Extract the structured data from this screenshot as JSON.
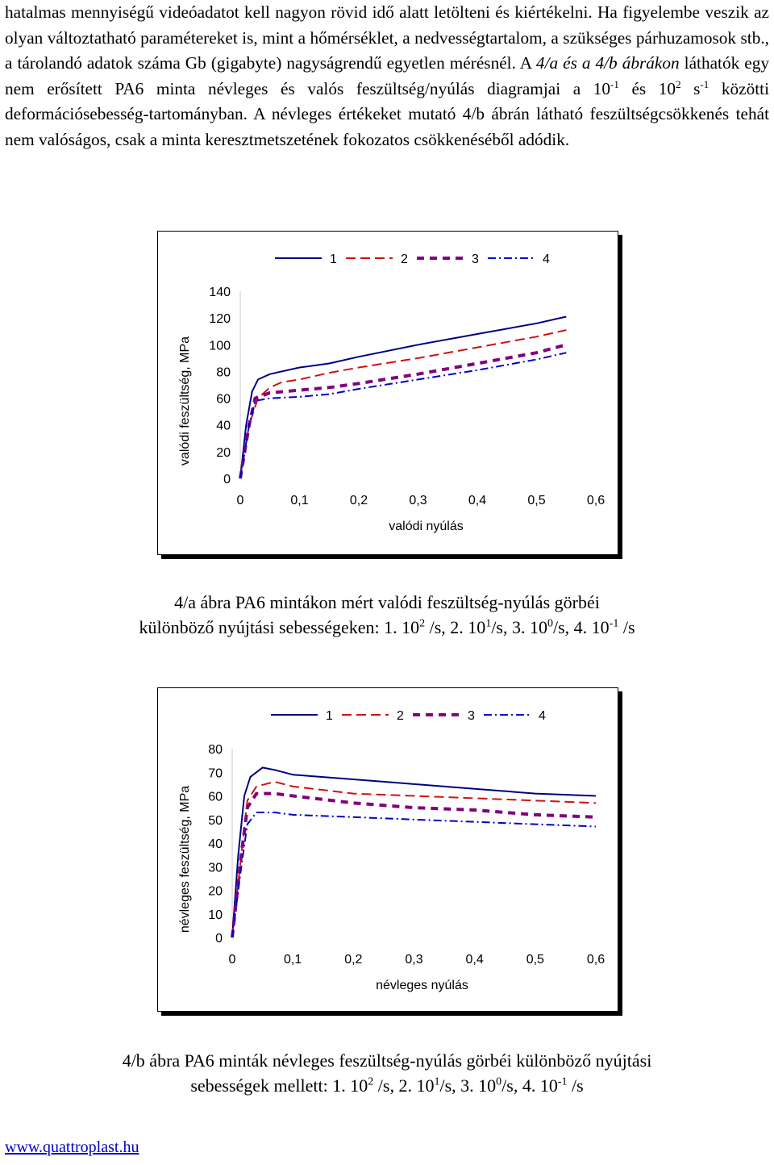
{
  "paragraph": {
    "p1": "hatalmas mennyiségű videóadatot kell nagyon rövid idő alatt letölteni és kiértékelni. Ha figyelembe veszik az olyan változtatható paramétereket is, mint a hőmérséklet, a nedvességtartalom, a szükséges párhuzamosok stb., a tárolandó adatok száma Gb (gigabyte) nagyságrendű egyetlen mérésnél. A ",
    "ref": "4/a és a 4/b ábrákon",
    "p2": " láthatók egy nem erősített PA6 minta névleges és valós feszültség/nyúlás diagramjai a 10",
    "sup1": "-1",
    "p3": " és 10",
    "sup2": "2",
    "p4": " s",
    "sup3": "-1",
    "p5": " közötti deformációsebesség-tartományban. A névleges értékeket mutató 4/b ábrán látható feszültségcsökkenés tehát nem valóságos, csak a minta keresztmetszetének fokozatos csökkenéséből adódik."
  },
  "caption_a": {
    "line1": "4/a ábra PA6 mintákon mért valódi feszültség-nyúlás görbéi",
    "l2a": "különböző nyújtási sebességeken: 1. 10",
    "s1": "2",
    "l2b": " /s, 2. 10",
    "s2": "1",
    "l2c": "/s, 3. 10",
    "s3": "0",
    "l2d": "/s, 4. 10",
    "s4": "-1",
    "l2e": " /s"
  },
  "caption_b": {
    "line1": "4/b ábra PA6 minták névleges feszültség-nyúlás görbéi különböző nyújtási",
    "l2a": "sebességek mellett: 1. 10",
    "s1": "2",
    "l2b": " /s, 2. 10",
    "s2": "1",
    "l2c": "/s, 3. 10",
    "s3": "0",
    "l2d": "/s, 4. 10",
    "s4": "-1",
    "l2e": " /s"
  },
  "footer": {
    "link": "www.quattroplast.hu"
  },
  "colors": {
    "s1": "#000080",
    "s2": "#d01010",
    "s3": "#800080",
    "s4": "#0000cc"
  },
  "chart_data": [
    {
      "type": "line",
      "title": "",
      "xlabel": "valódi nyúlás",
      "ylabel": "valódi feszültség, MPa",
      "xlim": [
        0,
        0.6
      ],
      "ylim": [
        0,
        140
      ],
      "xticks": [
        "0",
        "0,1",
        "0,2",
        "0,3",
        "0,4",
        "0,5",
        "0,6"
      ],
      "yticks": [
        "0",
        "20",
        "40",
        "60",
        "80",
        "100",
        "120",
        "140"
      ],
      "legend": [
        "1",
        "2",
        "3",
        "4"
      ],
      "legend_position": "top",
      "series": [
        {
          "name": "1",
          "points": [
            [
              0,
              0
            ],
            [
              0.01,
              40
            ],
            [
              0.02,
              65
            ],
            [
              0.03,
              74
            ],
            [
              0.05,
              78
            ],
            [
              0.1,
              83
            ],
            [
              0.15,
              86
            ],
            [
              0.2,
              91
            ],
            [
              0.3,
              100
            ],
            [
              0.4,
              108
            ],
            [
              0.5,
              116
            ],
            [
              0.55,
              121
            ]
          ]
        },
        {
          "name": "2",
          "points": [
            [
              0,
              0
            ],
            [
              0.015,
              40
            ],
            [
              0.03,
              60
            ],
            [
              0.05,
              68
            ],
            [
              0.07,
              72
            ],
            [
              0.1,
              74
            ],
            [
              0.15,
              79
            ],
            [
              0.2,
              83
            ],
            [
              0.3,
              90
            ],
            [
              0.4,
              98
            ],
            [
              0.5,
              106
            ],
            [
              0.55,
              111
            ]
          ]
        },
        {
          "name": "3",
          "points": [
            [
              0,
              0
            ],
            [
              0.015,
              40
            ],
            [
              0.025,
              60
            ],
            [
              0.05,
              64
            ],
            [
              0.1,
              66
            ],
            [
              0.15,
              68
            ],
            [
              0.2,
              71
            ],
            [
              0.3,
              78
            ],
            [
              0.4,
              86
            ],
            [
              0.5,
              94
            ],
            [
              0.55,
              100
            ]
          ]
        },
        {
          "name": "4",
          "points": [
            [
              0,
              0
            ],
            [
              0.015,
              40
            ],
            [
              0.025,
              58
            ],
            [
              0.05,
              60
            ],
            [
              0.1,
              61
            ],
            [
              0.15,
              63
            ],
            [
              0.2,
              67
            ],
            [
              0.3,
              74
            ],
            [
              0.4,
              81
            ],
            [
              0.5,
              89
            ],
            [
              0.55,
              94
            ]
          ]
        }
      ]
    },
    {
      "type": "line",
      "title": "",
      "xlabel": "névleges nyúlás",
      "ylabel": "névleges feszültség, MPa",
      "xlim": [
        0,
        0.6
      ],
      "ylim": [
        0,
        80
      ],
      "xticks": [
        "0",
        "0,1",
        "0,2",
        "0,3",
        "0,4",
        "0,5",
        "0,6"
      ],
      "yticks": [
        "0",
        "10",
        "20",
        "30",
        "40",
        "50",
        "60",
        "70",
        "80"
      ],
      "legend": [
        "1",
        "2",
        "3",
        "4"
      ],
      "legend_position": "top",
      "series": [
        {
          "name": "1",
          "points": [
            [
              0,
              0
            ],
            [
              0.01,
              35
            ],
            [
              0.02,
              60
            ],
            [
              0.03,
              68
            ],
            [
              0.05,
              72
            ],
            [
              0.07,
              71
            ],
            [
              0.1,
              69
            ],
            [
              0.2,
              67
            ],
            [
              0.3,
              65
            ],
            [
              0.4,
              63
            ],
            [
              0.5,
              61
            ],
            [
              0.6,
              60
            ]
          ]
        },
        {
          "name": "2",
          "points": [
            [
              0,
              0
            ],
            [
              0.015,
              35
            ],
            [
              0.025,
              58
            ],
            [
              0.04,
              64
            ],
            [
              0.07,
              66
            ],
            [
              0.1,
              64
            ],
            [
              0.2,
              61
            ],
            [
              0.3,
              60
            ],
            [
              0.4,
              59
            ],
            [
              0.5,
              58
            ],
            [
              0.6,
              57
            ]
          ]
        },
        {
          "name": "3",
          "points": [
            [
              0,
              0
            ],
            [
              0.015,
              35
            ],
            [
              0.025,
              55
            ],
            [
              0.04,
              61
            ],
            [
              0.07,
              61
            ],
            [
              0.1,
              60
            ],
            [
              0.2,
              57
            ],
            [
              0.3,
              55
            ],
            [
              0.4,
              54
            ],
            [
              0.5,
              52
            ],
            [
              0.6,
              51
            ]
          ]
        },
        {
          "name": "4",
          "points": [
            [
              0,
              0
            ],
            [
              0.015,
              30
            ],
            [
              0.025,
              48
            ],
            [
              0.04,
              53
            ],
            [
              0.07,
              53
            ],
            [
              0.1,
              52
            ],
            [
              0.2,
              51
            ],
            [
              0.3,
              50
            ],
            [
              0.4,
              49
            ],
            [
              0.5,
              48
            ],
            [
              0.6,
              47
            ]
          ]
        }
      ]
    }
  ]
}
